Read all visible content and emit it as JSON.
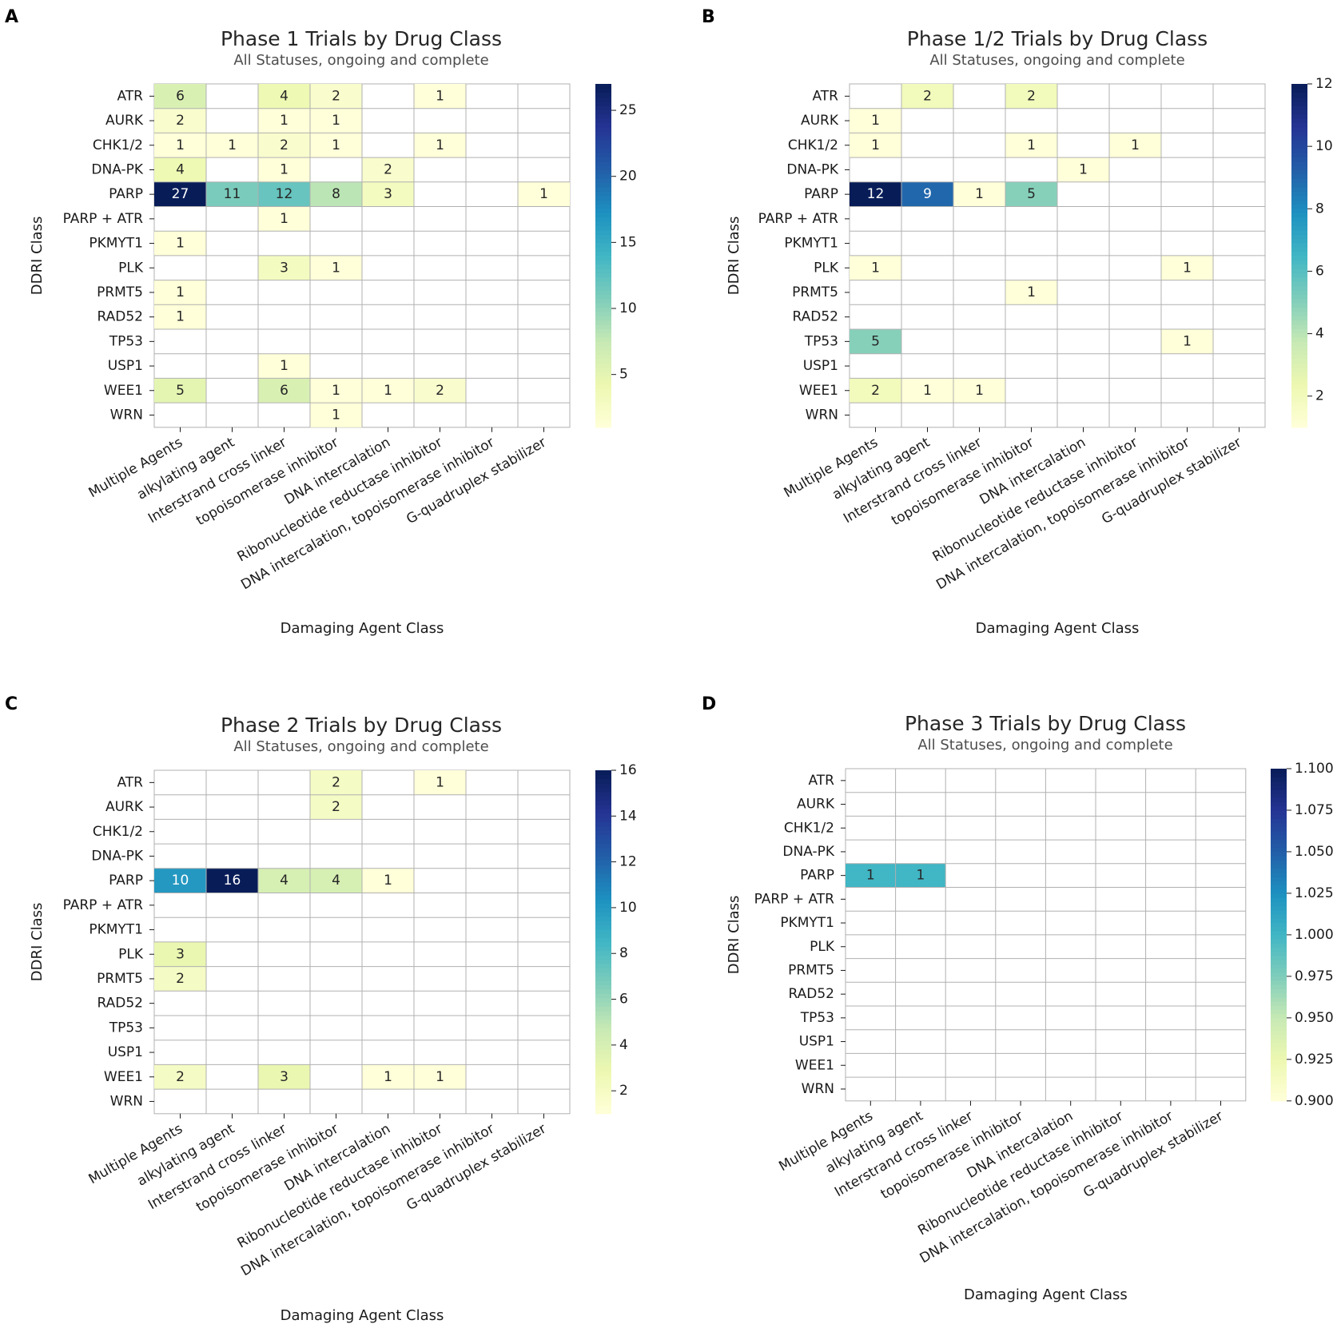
{
  "figure": {
    "rows": [
      "ATR",
      "AURK",
      "CHK1/2",
      "DNA-PK",
      "PARP",
      "PARP + ATR",
      "PKMYT1",
      "PLK",
      "PRMT5",
      "RAD52",
      "TP53",
      "USP1",
      "WEE1",
      "WRN"
    ],
    "columns": [
      "Multiple Agents",
      "alkylating agent",
      "Interstrand cross linker",
      "topoisomerase inhibitor",
      "DNA intercalation",
      "Ribonucleotide reductase inhibitor",
      "DNA intercalation, topoisomerase inhibitor",
      "G-quadruplex stabilizer"
    ],
    "colormap": [
      "#ffffd9",
      "#edf8b1",
      "#c7e9b4",
      "#7fcdbb",
      "#41b6c4",
      "#1d91c0",
      "#225ea8",
      "#253494",
      "#081d58"
    ]
  },
  "chart_data": [
    {
      "letter": "A",
      "type": "heatmap",
      "title": "Phase 1 Trials by Drug Class",
      "subtitle": "All Statuses, ongoing and complete",
      "xlabel": "Damaging Agent Class",
      "ylabel": "DDRI Class",
      "vmin": 1,
      "vmax": 27,
      "colorbar_ticks": [
        5,
        10,
        15,
        20,
        25
      ],
      "colorbar_tick_labels": [
        "5",
        "10",
        "15",
        "20",
        "25"
      ],
      "values": [
        [
          6,
          null,
          4,
          2,
          null,
          1,
          null,
          null
        ],
        [
          2,
          null,
          1,
          1,
          null,
          null,
          null,
          null
        ],
        [
          1,
          1,
          2,
          1,
          null,
          1,
          null,
          null
        ],
        [
          4,
          null,
          1,
          null,
          2,
          null,
          null,
          null
        ],
        [
          27,
          11,
          12,
          8,
          3,
          null,
          null,
          1
        ],
        [
          null,
          null,
          1,
          null,
          null,
          null,
          null,
          null
        ],
        [
          1,
          null,
          null,
          null,
          null,
          null,
          null,
          null
        ],
        [
          null,
          null,
          3,
          1,
          null,
          null,
          null,
          null
        ],
        [
          1,
          null,
          null,
          null,
          null,
          null,
          null,
          null
        ],
        [
          1,
          null,
          null,
          null,
          null,
          null,
          null,
          null
        ],
        [
          null,
          null,
          null,
          null,
          null,
          null,
          null,
          null
        ],
        [
          null,
          null,
          1,
          null,
          null,
          null,
          null,
          null
        ],
        [
          5,
          null,
          6,
          1,
          1,
          2,
          null,
          null
        ],
        [
          null,
          null,
          null,
          1,
          null,
          null,
          null,
          null
        ]
      ]
    },
    {
      "letter": "B",
      "type": "heatmap",
      "title": "Phase 1/2 Trials by Drug Class",
      "subtitle": "All Statuses, ongoing and complete",
      "xlabel": "Damaging Agent Class",
      "ylabel": "DDRI Class",
      "vmin": 1,
      "vmax": 12,
      "colorbar_ticks": [
        2,
        4,
        6,
        8,
        10,
        12
      ],
      "colorbar_tick_labels": [
        "2",
        "4",
        "6",
        "8",
        "10",
        "12"
      ],
      "values": [
        [
          null,
          2,
          null,
          2,
          null,
          null,
          null,
          null
        ],
        [
          1,
          null,
          null,
          null,
          null,
          null,
          null,
          null
        ],
        [
          1,
          null,
          null,
          1,
          null,
          1,
          null,
          null
        ],
        [
          null,
          null,
          null,
          null,
          1,
          null,
          null,
          null
        ],
        [
          12,
          9,
          1,
          5,
          null,
          null,
          null,
          null
        ],
        [
          null,
          null,
          null,
          null,
          null,
          null,
          null,
          null
        ],
        [
          null,
          null,
          null,
          null,
          null,
          null,
          null,
          null
        ],
        [
          1,
          null,
          null,
          null,
          null,
          null,
          1,
          null
        ],
        [
          null,
          null,
          null,
          1,
          null,
          null,
          null,
          null
        ],
        [
          null,
          null,
          null,
          null,
          null,
          null,
          null,
          null
        ],
        [
          5,
          null,
          null,
          null,
          null,
          null,
          1,
          null
        ],
        [
          null,
          null,
          null,
          null,
          null,
          null,
          null,
          null
        ],
        [
          2,
          1,
          1,
          null,
          null,
          null,
          null,
          null
        ],
        [
          null,
          null,
          null,
          null,
          null,
          null,
          null,
          null
        ]
      ]
    },
    {
      "letter": "C",
      "type": "heatmap",
      "title": "Phase 2 Trials by Drug Class",
      "subtitle": "All Statuses, ongoing and complete",
      "xlabel": "Damaging Agent Class",
      "ylabel": "DDRI Class",
      "vmin": 1,
      "vmax": 16,
      "colorbar_ticks": [
        2,
        4,
        6,
        8,
        10,
        12,
        14,
        16
      ],
      "colorbar_tick_labels": [
        "2",
        "4",
        "6",
        "8",
        "10",
        "12",
        "14",
        "16"
      ],
      "values": [
        [
          null,
          null,
          null,
          2,
          null,
          1,
          null,
          null
        ],
        [
          null,
          null,
          null,
          2,
          null,
          null,
          null,
          null
        ],
        [
          null,
          null,
          null,
          null,
          null,
          null,
          null,
          null
        ],
        [
          null,
          null,
          null,
          null,
          null,
          null,
          null,
          null
        ],
        [
          10,
          16,
          4,
          4,
          1,
          null,
          null,
          null
        ],
        [
          null,
          null,
          null,
          null,
          null,
          null,
          null,
          null
        ],
        [
          null,
          null,
          null,
          null,
          null,
          null,
          null,
          null
        ],
        [
          3,
          null,
          null,
          null,
          null,
          null,
          null,
          null
        ],
        [
          2,
          null,
          null,
          null,
          null,
          null,
          null,
          null
        ],
        [
          null,
          null,
          null,
          null,
          null,
          null,
          null,
          null
        ],
        [
          null,
          null,
          null,
          null,
          null,
          null,
          null,
          null
        ],
        [
          null,
          null,
          null,
          null,
          null,
          null,
          null,
          null
        ],
        [
          2,
          null,
          3,
          null,
          1,
          1,
          null,
          null
        ],
        [
          null,
          null,
          null,
          null,
          null,
          null,
          null,
          null
        ]
      ]
    },
    {
      "letter": "D",
      "type": "heatmap",
      "title": "Phase 3 Trials by Drug Class",
      "subtitle": "All Statuses, ongoing and complete",
      "xlabel": "Damaging Agent Class",
      "ylabel": "DDRI Class",
      "vmin": 0.9,
      "vmax": 1.1,
      "colorbar_ticks": [
        0.9,
        0.925,
        0.95,
        0.975,
        1.0,
        1.025,
        1.05,
        1.075,
        1.1
      ],
      "colorbar_tick_labels": [
        "0.900",
        "0.925",
        "0.950",
        "0.975",
        "1.000",
        "1.025",
        "1.050",
        "1.075",
        "1.100"
      ],
      "values": [
        [
          null,
          null,
          null,
          null,
          null,
          null,
          null,
          null
        ],
        [
          null,
          null,
          null,
          null,
          null,
          null,
          null,
          null
        ],
        [
          null,
          null,
          null,
          null,
          null,
          null,
          null,
          null
        ],
        [
          null,
          null,
          null,
          null,
          null,
          null,
          null,
          null
        ],
        [
          1,
          1,
          null,
          null,
          null,
          null,
          null,
          null
        ],
        [
          null,
          null,
          null,
          null,
          null,
          null,
          null,
          null
        ],
        [
          null,
          null,
          null,
          null,
          null,
          null,
          null,
          null
        ],
        [
          null,
          null,
          null,
          null,
          null,
          null,
          null,
          null
        ],
        [
          null,
          null,
          null,
          null,
          null,
          null,
          null,
          null
        ],
        [
          null,
          null,
          null,
          null,
          null,
          null,
          null,
          null
        ],
        [
          null,
          null,
          null,
          null,
          null,
          null,
          null,
          null
        ],
        [
          null,
          null,
          null,
          null,
          null,
          null,
          null,
          null
        ],
        [
          null,
          null,
          null,
          null,
          null,
          null,
          null,
          null
        ],
        [
          null,
          null,
          null,
          null,
          null,
          null,
          null,
          null
        ]
      ]
    }
  ]
}
